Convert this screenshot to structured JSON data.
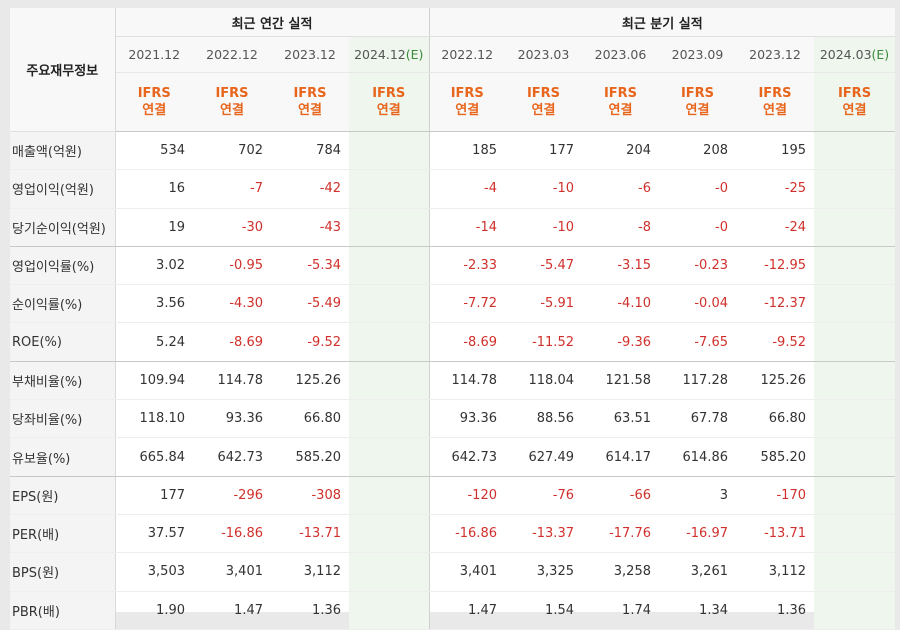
{
  "header": {
    "row_label": "주요재무정보",
    "annual_title": "최근 연간 실적",
    "quarterly_title": "최근 분기 실적",
    "basis_top": "IFRS",
    "basis_bottom": "연결"
  },
  "annual_periods": [
    "2021.12",
    "2022.12",
    "2023.12",
    "2024.12"
  ],
  "annual_estimate_mark": "(E)",
  "quarterly_periods": [
    "2022.12",
    "2023.03",
    "2023.06",
    "2023.09",
    "2023.12",
    "2024.03"
  ],
  "quarterly_estimate_mark": "(E)",
  "rows": [
    {
      "label": "매출액(억원)",
      "annual": [
        "534",
        "702",
        "784",
        ""
      ],
      "quarterly": [
        "185",
        "177",
        "204",
        "208",
        "195",
        ""
      ]
    },
    {
      "label": "영업이익(억원)",
      "annual": [
        "16",
        "-7",
        "-42",
        ""
      ],
      "quarterly": [
        "-4",
        "-10",
        "-6",
        "-0",
        "-25",
        ""
      ]
    },
    {
      "label": "당기순이익(억원)",
      "annual": [
        "19",
        "-30",
        "-43",
        ""
      ],
      "quarterly": [
        "-14",
        "-10",
        "-8",
        "-0",
        "-24",
        ""
      ]
    },
    {
      "label": "영업이익률(%)",
      "annual": [
        "3.02",
        "-0.95",
        "-5.34",
        ""
      ],
      "quarterly": [
        "-2.33",
        "-5.47",
        "-3.15",
        "-0.23",
        "-12.95",
        ""
      ]
    },
    {
      "label": "순이익률(%)",
      "annual": [
        "3.56",
        "-4.30",
        "-5.49",
        ""
      ],
      "quarterly": [
        "-7.72",
        "-5.91",
        "-4.10",
        "-0.04",
        "-12.37",
        ""
      ]
    },
    {
      "label": "ROE(%)",
      "annual": [
        "5.24",
        "-8.69",
        "-9.52",
        ""
      ],
      "quarterly": [
        "-8.69",
        "-11.52",
        "-9.36",
        "-7.65",
        "-9.52",
        ""
      ]
    },
    {
      "label": "부채비율(%)",
      "annual": [
        "109.94",
        "114.78",
        "125.26",
        ""
      ],
      "quarterly": [
        "114.78",
        "118.04",
        "121.58",
        "117.28",
        "125.26",
        ""
      ]
    },
    {
      "label": "당좌비율(%)",
      "annual": [
        "118.10",
        "93.36",
        "66.80",
        ""
      ],
      "quarterly": [
        "93.36",
        "88.56",
        "63.51",
        "67.78",
        "66.80",
        ""
      ]
    },
    {
      "label": "유보율(%)",
      "annual": [
        "665.84",
        "642.73",
        "585.20",
        ""
      ],
      "quarterly": [
        "642.73",
        "627.49",
        "614.17",
        "614.86",
        "585.20",
        ""
      ]
    },
    {
      "label": "EPS(원)",
      "annual": [
        "177",
        "-296",
        "-308",
        ""
      ],
      "quarterly": [
        "-120",
        "-76",
        "-66",
        "3",
        "-170",
        ""
      ]
    },
    {
      "label": "PER(배)",
      "annual": [
        "37.57",
        "-16.86",
        "-13.71",
        ""
      ],
      "quarterly": [
        "-16.86",
        "-13.37",
        "-17.76",
        "-16.97",
        "-13.71",
        ""
      ]
    },
    {
      "label": "BPS(원)",
      "annual": [
        "3,503",
        "3,401",
        "3,112",
        ""
      ],
      "quarterly": [
        "3,401",
        "3,325",
        "3,258",
        "3,261",
        "3,112",
        ""
      ]
    },
    {
      "label": "PBR(배)",
      "annual": [
        "1.90",
        "1.47",
        "1.36",
        ""
      ],
      "quarterly": [
        "1.47",
        "1.54",
        "1.74",
        "1.34",
        "1.36",
        ""
      ]
    }
  ],
  "colors": {
    "negative": "#d0302b",
    "basis": "#e8651c",
    "estimate_bg": "#eef6ee"
  }
}
